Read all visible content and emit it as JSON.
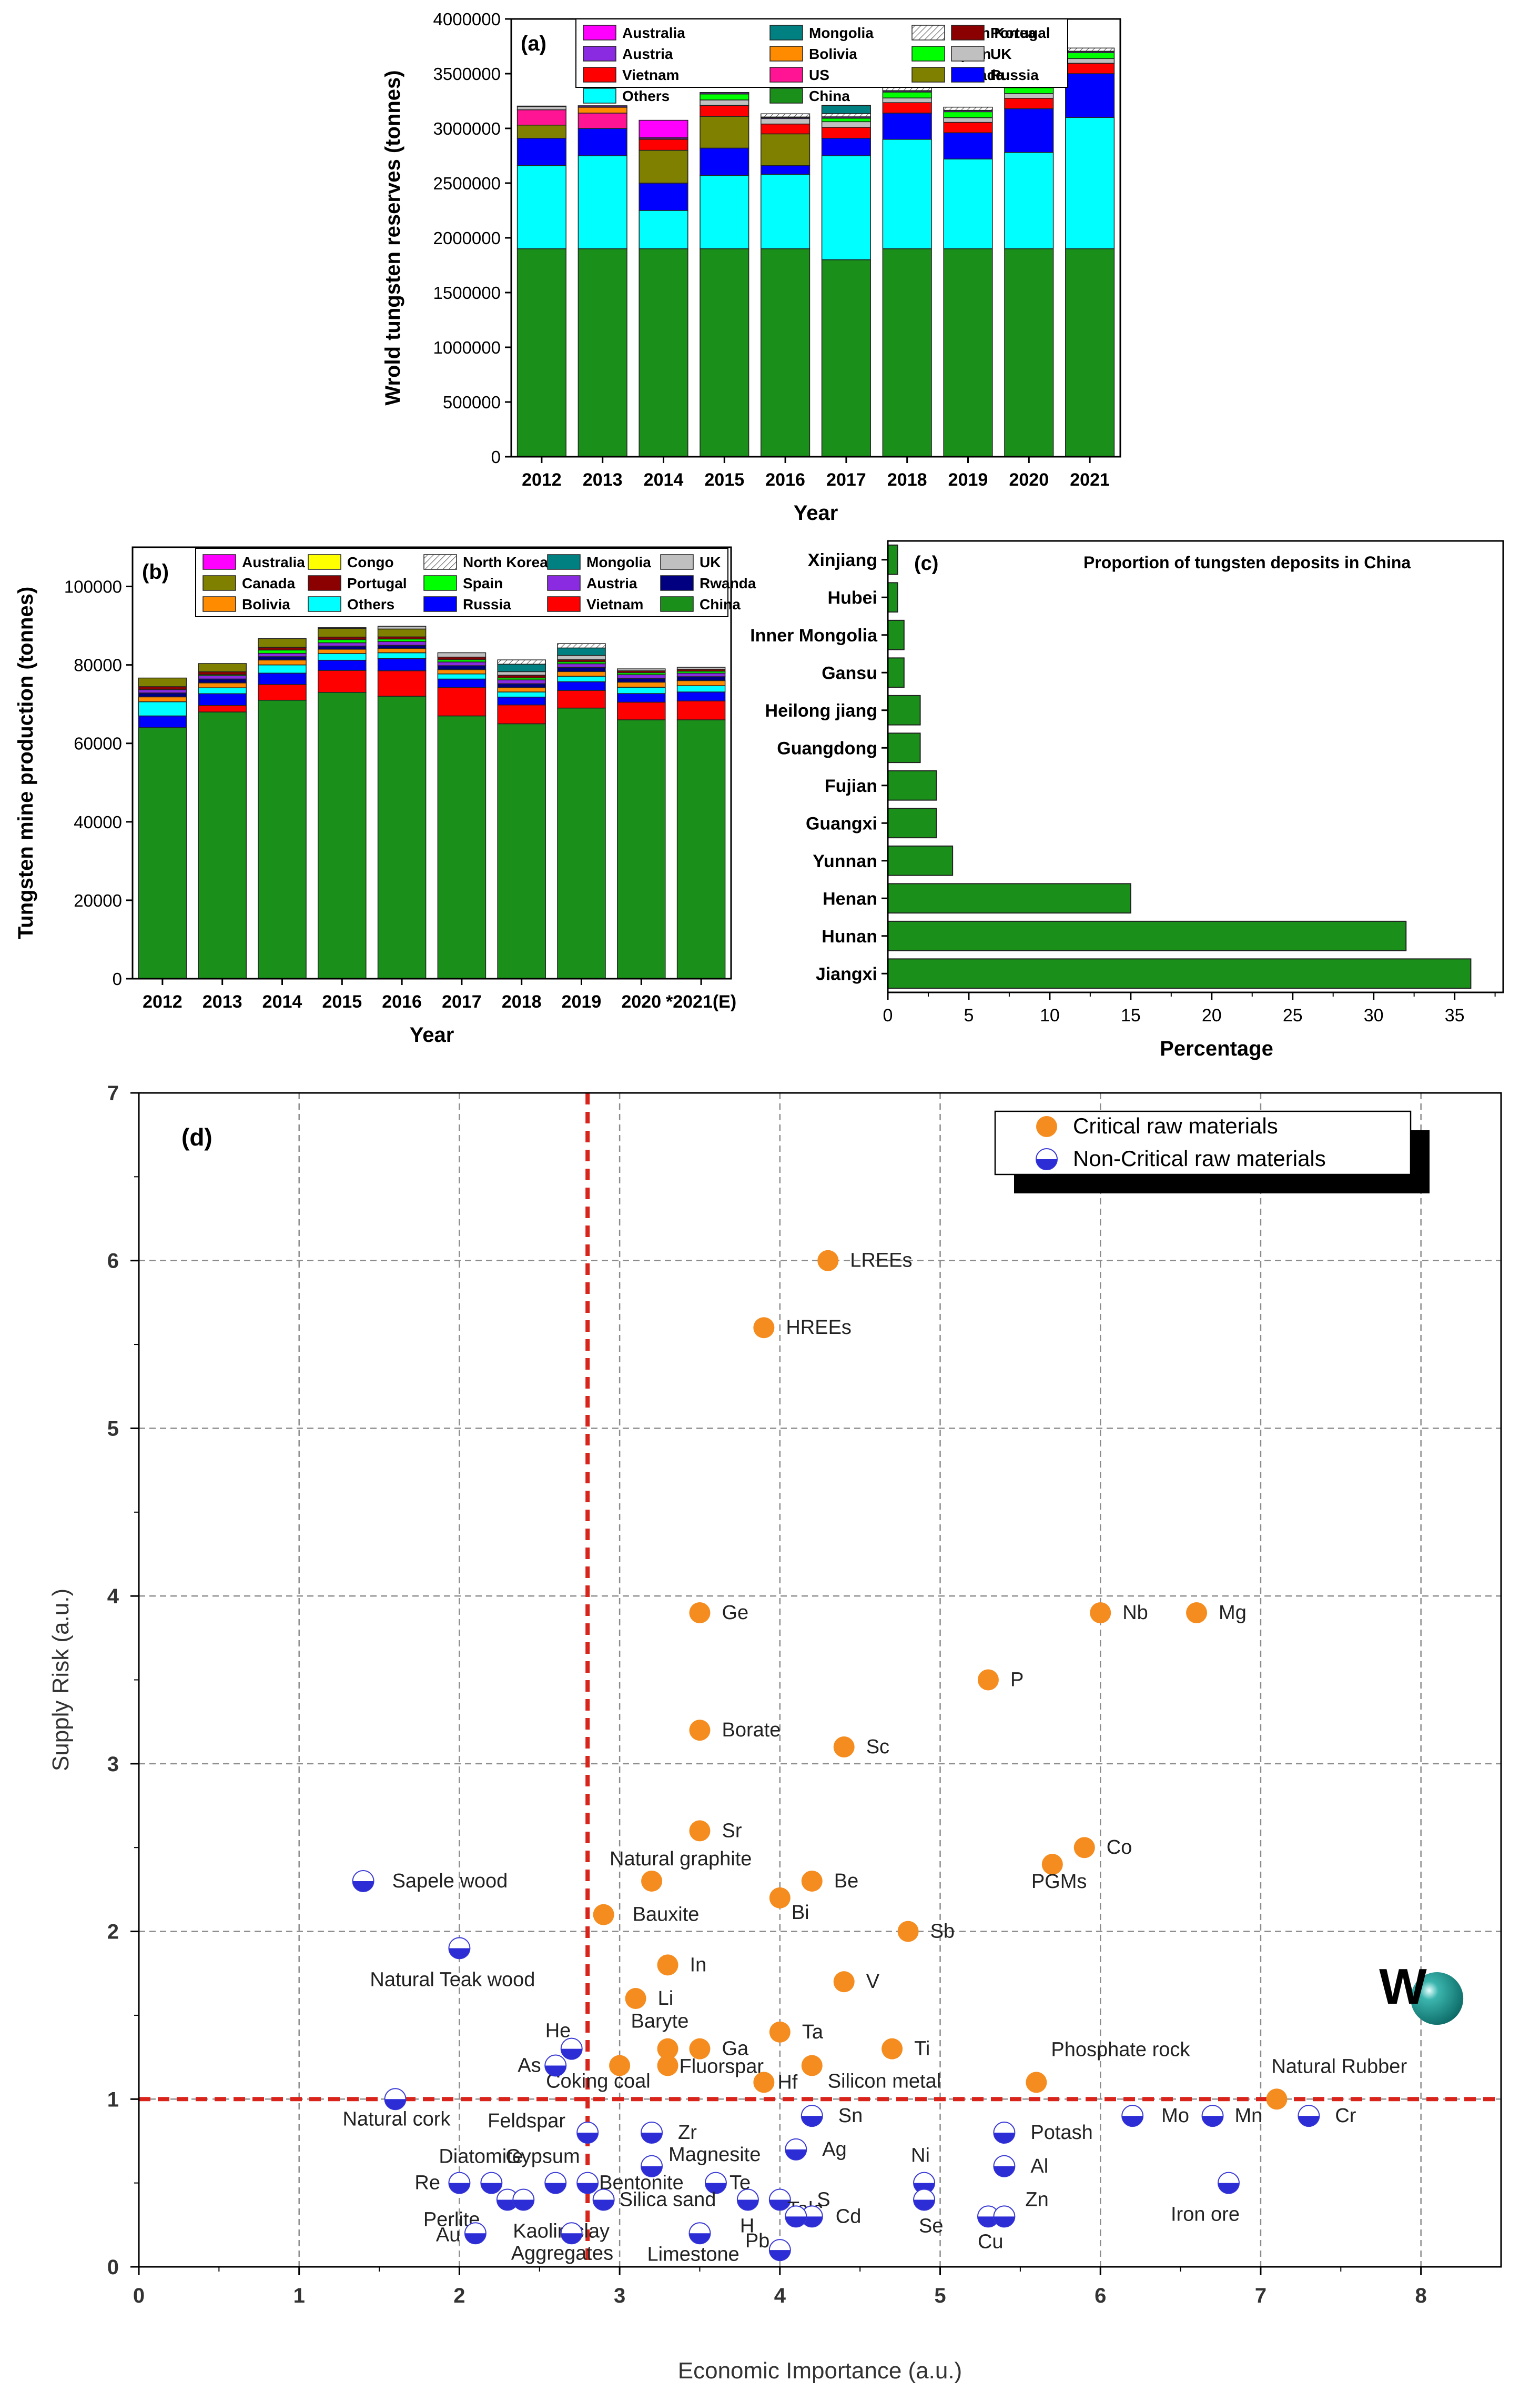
{
  "chart_data": [
    {
      "panel": "a",
      "type": "bar",
      "stacked": true,
      "panel_label": "(a)",
      "xlabel": "Year",
      "ylabel": "Wrold tungsten reserves (tonnes)",
      "ylim": [
        0,
        4000000
      ],
      "yticks": [
        0,
        500000,
        1000000,
        1500000,
        2000000,
        2500000,
        3000000,
        3500000,
        4000000
      ],
      "categories": [
        "2012",
        "2013",
        "2014",
        "2015",
        "2016",
        "2017",
        "2018",
        "2019",
        "2020",
        "2021"
      ],
      "legend_position": "top",
      "legend_order": [
        "Australia",
        "Mongolia",
        "North Korea",
        "Portugal",
        "Austria",
        "Bolivia",
        "Spain",
        "UK",
        "Vietnam",
        "US",
        "Canada",
        "Russia",
        "Others",
        "China"
      ],
      "series": [
        {
          "name": "China",
          "color": "#1a8f1a",
          "values": [
            1900000,
            1900000,
            1900000,
            1900000,
            1900000,
            1800000,
            1900000,
            1900000,
            1900000,
            1900000
          ]
        },
        {
          "name": "Others",
          "color": "#00ffff",
          "values": [
            760000,
            850000,
            350000,
            670000,
            680000,
            950000,
            1000000,
            820000,
            880000,
            1200000
          ]
        },
        {
          "name": "Russia",
          "color": "#0000ff",
          "values": [
            250000,
            250000,
            250000,
            250000,
            80000,
            160000,
            240000,
            240000,
            400000,
            400000
          ]
        },
        {
          "name": "Canada",
          "color": "#808000",
          "values": [
            120000,
            0,
            300000,
            290000,
            290000,
            0,
            0,
            0,
            0,
            0
          ]
        },
        {
          "name": "US",
          "color": "#ff1493",
          "values": [
            140000,
            140000,
            0,
            0,
            0,
            0,
            0,
            0,
            0,
            0
          ]
        },
        {
          "name": "Vietnam",
          "color": "#ff0000",
          "values": [
            0,
            0,
            100000,
            100000,
            90000,
            100000,
            95000,
            95000,
            95000,
            95000
          ]
        },
        {
          "name": "UK",
          "color": "#c0c0c0",
          "values": [
            30000,
            0,
            0,
            50000,
            50000,
            51000,
            43000,
            43000,
            43000,
            43000
          ]
        },
        {
          "name": "Spain",
          "color": "#00ff00",
          "values": [
            0,
            0,
            0,
            54000,
            0,
            32000,
            54000,
            54000,
            54000,
            54000
          ]
        },
        {
          "name": "Bolivia",
          "color": "#ff8c00",
          "values": [
            0,
            53000,
            0,
            0,
            0,
            0,
            0,
            0,
            0,
            0
          ]
        },
        {
          "name": "Austria",
          "color": "#8a2be2",
          "values": [
            0,
            10000,
            10000,
            10000,
            10000,
            10000,
            10000,
            10000,
            10000,
            10000
          ]
        },
        {
          "name": "Portugal",
          "color": "#8b0000",
          "values": [
            4200,
            4200,
            4200,
            4200,
            4200,
            3100,
            3100,
            3100,
            3100,
            3100
          ]
        },
        {
          "name": "North Korea",
          "color": "#ffffff",
          "hatch": true,
          "values": [
            0,
            0,
            0,
            0,
            29000,
            29000,
            29000,
            29000,
            29000,
            29000
          ]
        },
        {
          "name": "Mongolia",
          "color": "#008080",
          "values": [
            0,
            0,
            0,
            0,
            0,
            75000,
            0,
            0,
            0,
            0
          ]
        },
        {
          "name": "Australia",
          "color": "#ff00ff",
          "values": [
            0,
            0,
            160000,
            0,
            0,
            0,
            0,
            0,
            0,
            0
          ]
        }
      ]
    },
    {
      "panel": "b",
      "type": "bar",
      "stacked": true,
      "panel_label": "(b)",
      "xlabel": "Year",
      "ylabel": "Tungsten mine production (tonnes)",
      "ylim": [
        0,
        110000
      ],
      "yticks": [
        0,
        20000,
        40000,
        60000,
        80000,
        100000
      ],
      "categories": [
        "2012",
        "2013",
        "2014",
        "2015",
        "2016",
        "2017",
        "2018",
        "2019",
        "2020",
        "*2021(E)"
      ],
      "legend_position": "top",
      "legend_order": [
        "Australia",
        "Congo",
        "North Korea",
        "Mongolia",
        "UK",
        "Canada",
        "Portugal",
        "Spain",
        "Austria",
        "Rwanda",
        "Bolivia",
        "Others",
        "Russia",
        "Vietnam",
        "China"
      ],
      "series": [
        {
          "name": "China",
          "color": "#1a8f1a",
          "values": [
            64000,
            68000,
            71000,
            73000,
            72000,
            67000,
            65000,
            69000,
            66000,
            66000
          ]
        },
        {
          "name": "Vietnam",
          "color": "#ff0000",
          "values": [
            0,
            1660,
            4000,
            5600,
            6500,
            7200,
            4800,
            4500,
            4500,
            4800
          ]
        },
        {
          "name": "Russia",
          "color": "#0000ff",
          "values": [
            3000,
            3000,
            2900,
            2600,
            3100,
            2200,
            2000,
            2200,
            2200,
            2300
          ]
        },
        {
          "name": "Others",
          "color": "#00ffff",
          "values": [
            3600,
            1500,
            2100,
            1700,
            1500,
            1300,
            1300,
            1400,
            1600,
            1600
          ]
        },
        {
          "name": "Bolivia",
          "color": "#ff8c00",
          "values": [
            1250,
            1250,
            1250,
            1100,
            1100,
            1100,
            1100,
            1200,
            1300,
            1300
          ]
        },
        {
          "name": "Rwanda",
          "color": "#000080",
          "values": [
            1000,
            1000,
            850,
            800,
            800,
            1000,
            1000,
            1100,
            1000,
            1000
          ]
        },
        {
          "name": "Austria",
          "color": "#8a2be2",
          "values": [
            850,
            850,
            850,
            850,
            950,
            950,
            980,
            890,
            900,
            900
          ]
        },
        {
          "name": "Spain",
          "color": "#00ff00",
          "values": [
            0,
            250,
            840,
            800,
            650,
            570,
            500,
            500,
            500,
            500
          ]
        },
        {
          "name": "Portugal",
          "color": "#8b0000",
          "values": [
            760,
            750,
            700,
            650,
            550,
            680,
            700,
            530,
            500,
            500
          ]
        },
        {
          "name": "Canada",
          "color": "#808000",
          "values": [
            2200,
            2100,
            2200,
            2200,
            2000,
            0,
            0,
            0,
            0,
            0
          ]
        },
        {
          "name": "UK",
          "color": "#c0c0c0",
          "values": [
            0,
            0,
            0,
            200,
            700,
            1100,
            900,
            1100,
            500,
            500
          ]
        },
        {
          "name": "Mongolia",
          "color": "#008080",
          "values": [
            0,
            0,
            0,
            0,
            0,
            0,
            1900,
            1900,
            0,
            0
          ]
        },
        {
          "name": "North Korea",
          "color": "#ffffff",
          "hatch": true,
          "values": [
            0,
            0,
            0,
            0,
            0,
            0,
            1100,
            1100,
            0,
            0
          ]
        },
        {
          "name": "Congo",
          "color": "#ffff00",
          "values": [
            0,
            0,
            0,
            0,
            0,
            0,
            0,
            0,
            0,
            0
          ]
        },
        {
          "name": "Australia",
          "color": "#ff00ff",
          "values": [
            0,
            0,
            0,
            0,
            0,
            0,
            0,
            0,
            0,
            0
          ]
        }
      ]
    },
    {
      "panel": "c",
      "type": "bar",
      "orientation": "horizontal",
      "panel_label": "(c)",
      "title": "Proportion of tungsten deposits in China",
      "xlabel": "Percentage",
      "xlim": [
        0,
        38
      ],
      "xticks": [
        0,
        5,
        10,
        15,
        20,
        25,
        30,
        35
      ],
      "categories": [
        "Jiangxi",
        "Hunan",
        "Henan",
        "Yunnan",
        "Guangxi",
        "Fujian",
        "Guangdong",
        "Heilong jiang",
        "Gansu",
        "Inner Mongolia",
        "Hubei",
        "Xinjiang"
      ],
      "values": [
        36,
        32,
        15,
        4,
        3,
        3,
        2,
        2,
        1,
        1,
        0.6,
        0.6
      ],
      "color": "#1a8f1a"
    },
    {
      "panel": "d",
      "type": "scatter",
      "panel_label": "(d)",
      "xlabel": "Economic Importance (a.u.)",
      "ylabel": "Supply Risk (a.u.)",
      "xlim": [
        0,
        8.5
      ],
      "ylim": [
        0,
        7
      ],
      "xticks": [
        0,
        1,
        2,
        3,
        4,
        5,
        6,
        7,
        8
      ],
      "yticks": [
        0,
        1,
        2,
        3,
        4,
        5,
        6,
        7
      ],
      "grid": true,
      "threshold_x": 2.8,
      "threshold_y": 1.0,
      "legend_position": "top-right",
      "legend": [
        "Critical raw materials",
        "Non-Critical raw materials"
      ],
      "highlight": {
        "label": "W",
        "x": 8.1,
        "y": 1.6,
        "color": "#1a8a85"
      },
      "critical": [
        {
          "label": "LREEs",
          "x": 4.3,
          "y": 6.0
        },
        {
          "label": "HREEs",
          "x": 3.9,
          "y": 5.6
        },
        {
          "label": "Ge",
          "x": 3.5,
          "y": 3.9
        },
        {
          "label": "Nb",
          "x": 6.0,
          "y": 3.9
        },
        {
          "label": "Mg",
          "x": 6.6,
          "y": 3.9
        },
        {
          "label": "P",
          "x": 5.3,
          "y": 3.5
        },
        {
          "label": "Borate",
          "x": 3.5,
          "y": 3.2
        },
        {
          "label": "Sc",
          "x": 4.4,
          "y": 3.1
        },
        {
          "label": "Sr",
          "x": 3.5,
          "y": 2.6
        },
        {
          "label": "Co",
          "x": 5.9,
          "y": 2.5
        },
        {
          "label": "PGMs",
          "x": 5.7,
          "y": 2.4
        },
        {
          "label": "Natural graphite",
          "x": 3.2,
          "y": 2.3
        },
        {
          "label": "Be",
          "x": 4.2,
          "y": 2.3
        },
        {
          "label": "Bi",
          "x": 4.0,
          "y": 2.2
        },
        {
          "label": "Bauxite",
          "x": 2.9,
          "y": 2.1
        },
        {
          "label": "Sb",
          "x": 4.8,
          "y": 2.0
        },
        {
          "label": "In",
          "x": 3.3,
          "y": 1.8
        },
        {
          "label": "V",
          "x": 4.4,
          "y": 1.7
        },
        {
          "label": "Li",
          "x": 3.1,
          "y": 1.6
        },
        {
          "label": "Ta",
          "x": 4.0,
          "y": 1.4
        },
        {
          "label": "Baryte",
          "x": 3.3,
          "y": 1.3
        },
        {
          "label": "Ga",
          "x": 3.5,
          "y": 1.3
        },
        {
          "label": "Ti",
          "x": 4.7,
          "y": 1.3
        },
        {
          "label": "Fluorspar",
          "x": 3.3,
          "y": 1.2
        },
        {
          "label": "Coking coal",
          "x": 3.0,
          "y": 1.2
        },
        {
          "label": "Silicon metal",
          "x": 4.2,
          "y": 1.2
        },
        {
          "label": "Hf",
          "x": 3.9,
          "y": 1.1
        },
        {
          "label": "Phosphate rock",
          "x": 5.6,
          "y": 1.1
        },
        {
          "label": "Natural Rubber",
          "x": 7.1,
          "y": 1.0
        }
      ],
      "non_critical": [
        {
          "label": "Sapele wood",
          "x": 1.4,
          "y": 2.3
        },
        {
          "label": "Natural Teak wood",
          "x": 2.0,
          "y": 1.9
        },
        {
          "label": "He",
          "x": 2.7,
          "y": 1.3
        },
        {
          "label": "As",
          "x": 2.6,
          "y": 1.2
        },
        {
          "label": "Natural cork",
          "x": 1.6,
          "y": 1.0
        },
        {
          "label": "Feldspar",
          "x": 2.8,
          "y": 0.8
        },
        {
          "label": "Zr",
          "x": 3.2,
          "y": 0.8
        },
        {
          "label": "Sn",
          "x": 4.2,
          "y": 0.9
        },
        {
          "label": "Mo",
          "x": 6.2,
          "y": 0.9
        },
        {
          "label": "Mn",
          "x": 6.7,
          "y": 0.9
        },
        {
          "label": "Cr",
          "x": 7.3,
          "y": 0.9
        },
        {
          "label": "Potash",
          "x": 5.4,
          "y": 0.8
        },
        {
          "label": "Ag",
          "x": 4.1,
          "y": 0.7
        },
        {
          "label": "Magnesite",
          "x": 3.2,
          "y": 0.6
        },
        {
          "label": "Al",
          "x": 5.4,
          "y": 0.6
        },
        {
          "label": "Re",
          "x": 2.0,
          "y": 0.5
        },
        {
          "label": "Diatomite",
          "x": 2.2,
          "y": 0.5
        },
        {
          "label": "Gypsum",
          "x": 2.6,
          "y": 0.5
        },
        {
          "label": "Bentonite",
          "x": 2.8,
          "y": 0.5
        },
        {
          "label": "Te",
          "x": 3.6,
          "y": 0.5
        },
        {
          "label": "Ni",
          "x": 4.9,
          "y": 0.5
        },
        {
          "label": "Iron ore",
          "x": 6.8,
          "y": 0.5
        },
        {
          "label": "Perlite",
          "x": 2.3,
          "y": 0.4
        },
        {
          "label": "Kaolin clay",
          "x": 2.4,
          "y": 0.4
        },
        {
          "label": "Silica sand",
          "x": 2.9,
          "y": 0.4
        },
        {
          "label": "H",
          "x": 3.8,
          "y": 0.4
        },
        {
          "label": "Talc",
          "x": 4.0,
          "y": 0.4
        },
        {
          "label": "Se",
          "x": 4.9,
          "y": 0.4
        },
        {
          "label": "Cd",
          "x": 4.2,
          "y": 0.3
        },
        {
          "label": "S",
          "x": 4.1,
          "y": 0.3
        },
        {
          "label": "Cu",
          "x": 5.3,
          "y": 0.3
        },
        {
          "label": "Zn",
          "x": 5.4,
          "y": 0.3
        },
        {
          "label": "Au",
          "x": 2.1,
          "y": 0.2
        },
        {
          "label": "Aggregates",
          "x": 2.7,
          "y": 0.2
        },
        {
          "label": "Limestone",
          "x": 3.5,
          "y": 0.2
        },
        {
          "label": "Pb",
          "x": 4.0,
          "y": 0.1
        }
      ]
    }
  ]
}
